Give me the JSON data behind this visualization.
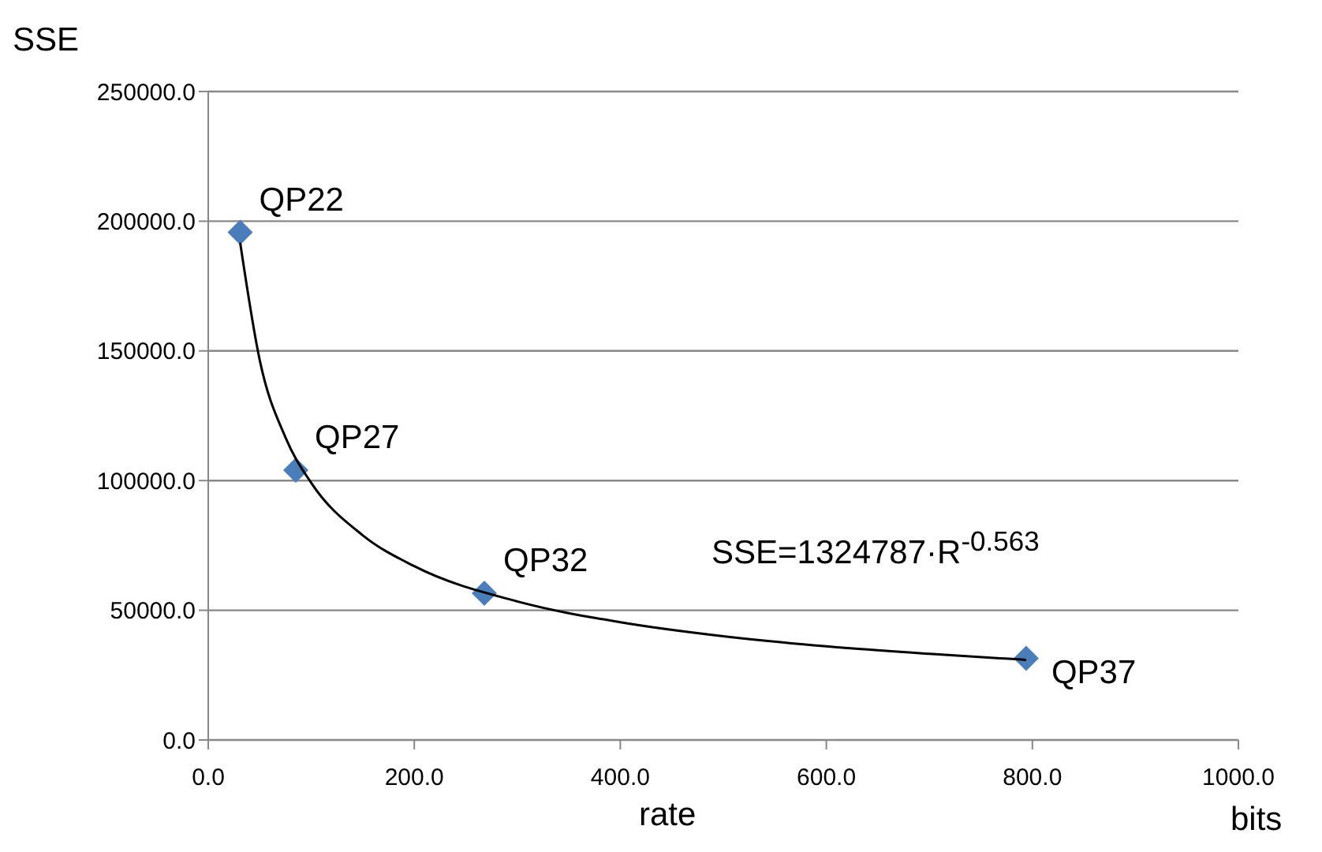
{
  "chart_data": {
    "type": "scatter",
    "xlabel": "rate",
    "ylabel": "SSE",
    "xlim": [
      0,
      1000
    ],
    "xticks": [
      {
        "value": 0,
        "label": "0.0"
      },
      {
        "value": 200,
        "label": "200.0"
      },
      {
        "value": 400,
        "label": "400.0"
      },
      {
        "value": 600,
        "label": "600.0"
      },
      {
        "value": 800,
        "label": "800.0"
      },
      {
        "value": 1000,
        "label": "1000.0"
      }
    ],
    "ylim": [
      0,
      250000
    ],
    "yticks": [
      {
        "value": 0,
        "label": "0.0"
      },
      {
        "value": 50000,
        "label": "50000.0"
      },
      {
        "value": 100000,
        "label": "100000.0"
      },
      {
        "value": 150000,
        "label": "150000.0"
      },
      {
        "value": 200000,
        "label": "200000.0"
      },
      {
        "value": 250000,
        "label": "250000.0"
      }
    ],
    "grid": "y",
    "legend": false,
    "series": [
      {
        "marker": "diamond",
        "color": "#4a7ebb",
        "x": [
          31,
          85,
          268,
          794
        ],
        "values": [
          195700,
          104000,
          56600,
          31500
        ]
      },
      {
        "type": "line",
        "marker": "none",
        "color": "#000000",
        "x": [
          31,
          50,
          75,
          100,
          150,
          200,
          300,
          400,
          500,
          600,
          700,
          794
        ],
        "values": [
          191700,
          146400,
          116600,
          99100,
          78900,
          67000,
          53400,
          45400,
          40000,
          36100,
          33200,
          30900
        ]
      }
    ],
    "annotations": [
      {
        "text": "QP22",
        "x": 31,
        "y": 195700
      },
      {
        "text": "QP27",
        "x": 85,
        "y": 104000
      },
      {
        "text": "QP32",
        "x": 268,
        "y": 56600
      },
      {
        "text": "QP37",
        "x": 794,
        "y": 31500
      },
      "SSE=1324787·R$^{-0.563}$",
      "bits"
    ]
  }
}
